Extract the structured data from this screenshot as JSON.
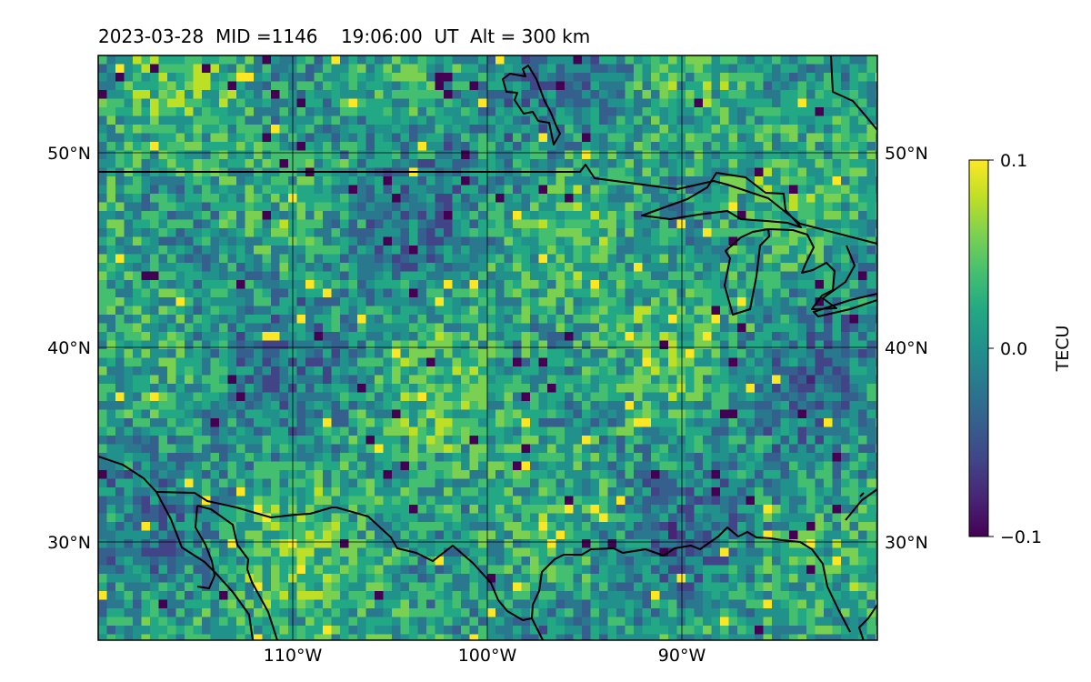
{
  "title": "2023-03-28  MID =1146    19:06:00  UT  Alt = 300 km",
  "map": {
    "lon_range": [
      -120,
      -80
    ],
    "lat_range": [
      25,
      55
    ],
    "grid_lon": [
      -110,
      -100,
      -90
    ],
    "grid_lat": [
      30,
      40,
      50
    ],
    "lon_labels": [
      "110°W",
      "100°W",
      "90°W"
    ],
    "lat_labels": [
      "30°N",
      "40°N",
      "50°N"
    ]
  },
  "colorbar": {
    "label": "TECU",
    "min": -0.1,
    "max": 0.1,
    "ticks": [
      {
        "value": 0.1,
        "label": "0.1"
      },
      {
        "value": 0.0,
        "label": "0.0"
      },
      {
        "value": -0.1,
        "label": "−0.1"
      }
    ],
    "colormap": "viridis"
  },
  "colors": {
    "viridis": [
      "#440154",
      "#482475",
      "#414487",
      "#355f8d",
      "#2a788e",
      "#21918c",
      "#22a884",
      "#44bf70",
      "#7ad151",
      "#bddf26",
      "#fde725"
    ],
    "coastline": "#000000",
    "grid": "#000000"
  }
}
